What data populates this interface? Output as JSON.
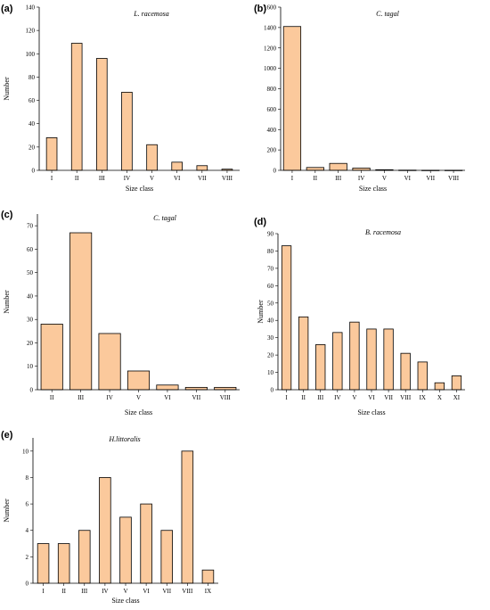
{
  "colors": {
    "bar_fill": "#fbc99c",
    "bar_stroke": "#000000",
    "axis": "#000000"
  },
  "chart_data": [
    {
      "panel": "(a)",
      "type": "bar",
      "title": "L. racemosa",
      "xlabel": "Size class",
      "ylabel": "Number",
      "categories": [
        "I",
        "II",
        "III",
        "IV",
        "V",
        "VI",
        "VII",
        "VIII"
      ],
      "values": [
        28,
        109,
        96,
        67,
        22,
        7,
        4,
        1
      ],
      "ylim": [
        0,
        140
      ],
      "yticks": [
        0,
        20,
        40,
        60,
        80,
        100,
        120,
        140
      ],
      "grid": false
    },
    {
      "panel": "(b)",
      "type": "bar",
      "title": "C. tagal",
      "xlabel": "Size class",
      "ylabel": "",
      "categories": [
        "I",
        "II",
        "III",
        "IV",
        "V",
        "VI",
        "VII",
        "VIII"
      ],
      "values": [
        1410,
        28,
        68,
        22,
        6,
        2,
        1,
        1
      ],
      "ylim": [
        0,
        1600
      ],
      "yticks": [
        0,
        200,
        400,
        600,
        800,
        1000,
        1200,
        1400,
        1600
      ],
      "grid": false
    },
    {
      "panel": "(c)",
      "type": "bar",
      "title": "C. tagal",
      "xlabel": "Size class",
      "ylabel": "Number",
      "categories": [
        "II",
        "III",
        "IV",
        "V",
        "VI",
        "VII",
        "VIII"
      ],
      "values": [
        28,
        67,
        24,
        8,
        2,
        1,
        1
      ],
      "ylim": [
        0,
        75
      ],
      "yticks": [
        0,
        10,
        20,
        30,
        40,
        50,
        60,
        70
      ],
      "grid": false
    },
    {
      "panel": "(d)",
      "type": "bar",
      "title": "B. racemosa",
      "xlabel": "Size class",
      "ylabel": "Number",
      "categories": [
        "I",
        "II",
        "III",
        "IV",
        "V",
        "VI",
        "VII",
        "VIII",
        "IX",
        "X",
        "XI"
      ],
      "values": [
        83,
        42,
        26,
        33,
        39,
        35,
        35,
        21,
        16,
        4,
        8
      ],
      "ylim": [
        0,
        90
      ],
      "yticks": [
        0,
        10,
        20,
        30,
        40,
        50,
        60,
        70,
        80,
        90
      ],
      "grid": false
    },
    {
      "panel": "(e)",
      "type": "bar",
      "title": "H.littoralis",
      "xlabel": "Size class",
      "ylabel": "Number",
      "categories": [
        "I",
        "II",
        "III",
        "IV",
        "V",
        "VI",
        "VII",
        "VIII",
        "IX"
      ],
      "values": [
        3,
        3,
        4,
        8,
        5,
        6,
        4,
        10,
        1
      ],
      "ylim": [
        0,
        11
      ],
      "yticks": [
        0,
        2,
        4,
        6,
        8,
        10
      ],
      "grid": false
    }
  ]
}
